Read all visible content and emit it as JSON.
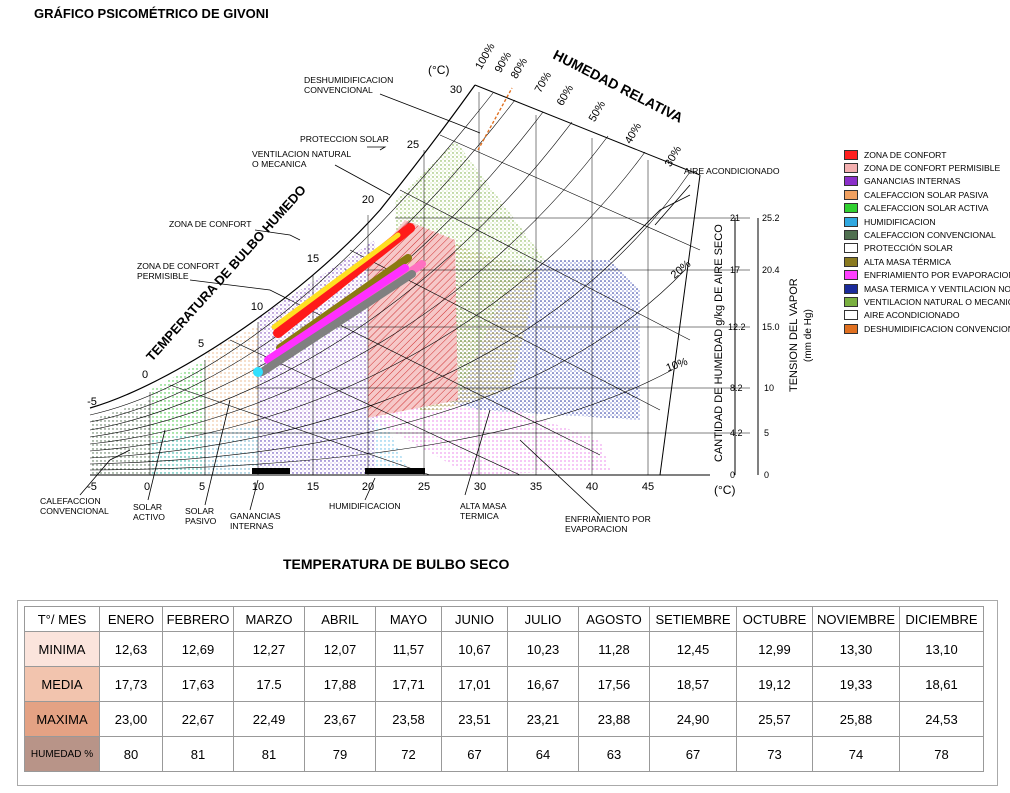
{
  "title": "GRÁFICO PSICOMÉTRICO DE GIVONI",
  "x_axis_title": "TEMPERATURA DE BULBO SECO",
  "chart": {
    "unit_top": "(°C)",
    "unit_bottom": "(°C)",
    "humedad_relativa": "HUMEDAD RELATIVA",
    "bulbo_humedo": "TEMPERATURA DE BULBO HUMEDO",
    "cantidad_humedad": "CANTIDAD DE HUMEDAD g/kg DE AIRE SECO",
    "tension_vapor": "TENSION DEL VAPOR",
    "tension_unit": "(mm de Hg)",
    "x_ticks": [
      "-5",
      "0",
      "5",
      "10",
      "15",
      "20",
      "25",
      "30",
      "35",
      "40",
      "45"
    ],
    "wb_ticks": [
      "-5",
      "0",
      "5",
      "10",
      "15",
      "20",
      "25",
      "30"
    ],
    "rh_labels": [
      "100%",
      "90%",
      "80%",
      "70%",
      "60%",
      "50%",
      "40%",
      "30%",
      "20%",
      "10%"
    ],
    "humidity_ticks": [
      "0",
      "4.2",
      "8.2",
      "12.2",
      "17",
      "21"
    ],
    "vapor_ticks": [
      "0",
      "5",
      "10",
      "15.0",
      "20.4",
      "25.2"
    ],
    "zone_labels": {
      "deshum": [
        "DESHUMIDIFICACION",
        "CONVENCIONAL"
      ],
      "proteccion": "PROTECCION SOLAR",
      "ventilacion": [
        "VENTILACION NATURAL",
        "O MECANICA"
      ],
      "confort": "ZONA DE CONFORT",
      "permisible": [
        "ZONA DE CONFORT",
        "PERMISIBLE"
      ],
      "aire": "AIRE ACONDICIONADO",
      "calef": [
        "CALEFACCION",
        "CONVENCIONAL"
      ],
      "solar_activo": [
        "SOLAR",
        "ACTIVO"
      ],
      "solar_pasivo": [
        "SOLAR",
        "PASIVO"
      ],
      "ganancias": [
        "GANANCIAS",
        "INTERNAS"
      ],
      "humidificacion": "HUMIDIFICACION",
      "alta_masa": [
        "ALTA MASA",
        "TERMICA"
      ],
      "enfriamiento": [
        "ENFRIAMIENTO POR",
        "EVAPORACION"
      ]
    }
  },
  "legend": [
    {
      "label": "ZONA DE CONFORT",
      "color": "#ff2020"
    },
    {
      "label": "ZONA DE CONFORT PERMISIBLE",
      "color": "#f4b0b0"
    },
    {
      "label": "GANANCIAS INTERNAS",
      "color": "#8b2fc9"
    },
    {
      "label": "CALEFACCION SOLAR PASIVA",
      "color": "#f0a060"
    },
    {
      "label": "CALEFACCION SOLAR ACTIVA",
      "color": "#30d030"
    },
    {
      "label": "HUMIDIFICACION",
      "color": "#30a8e0"
    },
    {
      "label": "CALEFACCION CONVENCIONAL",
      "color": "#507050"
    },
    {
      "label": "PROTECCIÓN SOLAR",
      "color": "#ffffff"
    },
    {
      "label": "ALTA MASA TÉRMICA",
      "color": "#8a7a20"
    },
    {
      "label": "ENFRIAMIENTO POR EVAPORACION",
      "color": "#ff40ff"
    },
    {
      "label": "MASA TERMICA Y VENTILACION NOCTURNA",
      "color": "#1a2a9a"
    },
    {
      "label": "VENTILACION NATURAL O MECANICA",
      "color": "#7ab040"
    },
    {
      "label": "AIRE ACONDICIONADO",
      "color": "#ffffff"
    },
    {
      "label": "DESHUMIDIFICACION CONVENCIONAL",
      "color": "#e07020"
    }
  ],
  "table": {
    "corner": "T°/ MES",
    "months": [
      "ENERO",
      "FEBRERO",
      "MARZO",
      "ABRIL",
      "MAYO",
      "JUNIO",
      "JULIO",
      "AGOSTO",
      "SETIEMBRE",
      "OCTUBRE",
      "NOVIEMBRE",
      "DICIEMBRE"
    ],
    "rows": [
      {
        "label": "MINIMA",
        "color": "#fbe4dc",
        "values": [
          "12,63",
          "12,69",
          "12,27",
          "12,07",
          "11,57",
          "10,67",
          "10,23",
          "11,28",
          "12,45",
          "12,99",
          "13,30",
          "13,10"
        ]
      },
      {
        "label": "MEDIA",
        "color": "#f2c4ae",
        "values": [
          "17,73",
          "17,63",
          "17.5",
          "17,88",
          "17,71",
          "17,01",
          "16,67",
          "17,56",
          "18,57",
          "19,12",
          "19,33",
          "18,61"
        ]
      },
      {
        "label": "MAXIMA",
        "color": "#e4a284",
        "values": [
          "23,00",
          "22,67",
          "22,49",
          "23,67",
          "23,58",
          "23,51",
          "23,21",
          "23,88",
          "24,90",
          "25,57",
          "25,88",
          "24,53"
        ]
      },
      {
        "label": "HUMEDAD %",
        "color": "#b89488",
        "values": [
          "80",
          "81",
          "81",
          "79",
          "72",
          "67",
          "64",
          "63",
          "67",
          "73",
          "74",
          "78"
        ]
      }
    ]
  }
}
